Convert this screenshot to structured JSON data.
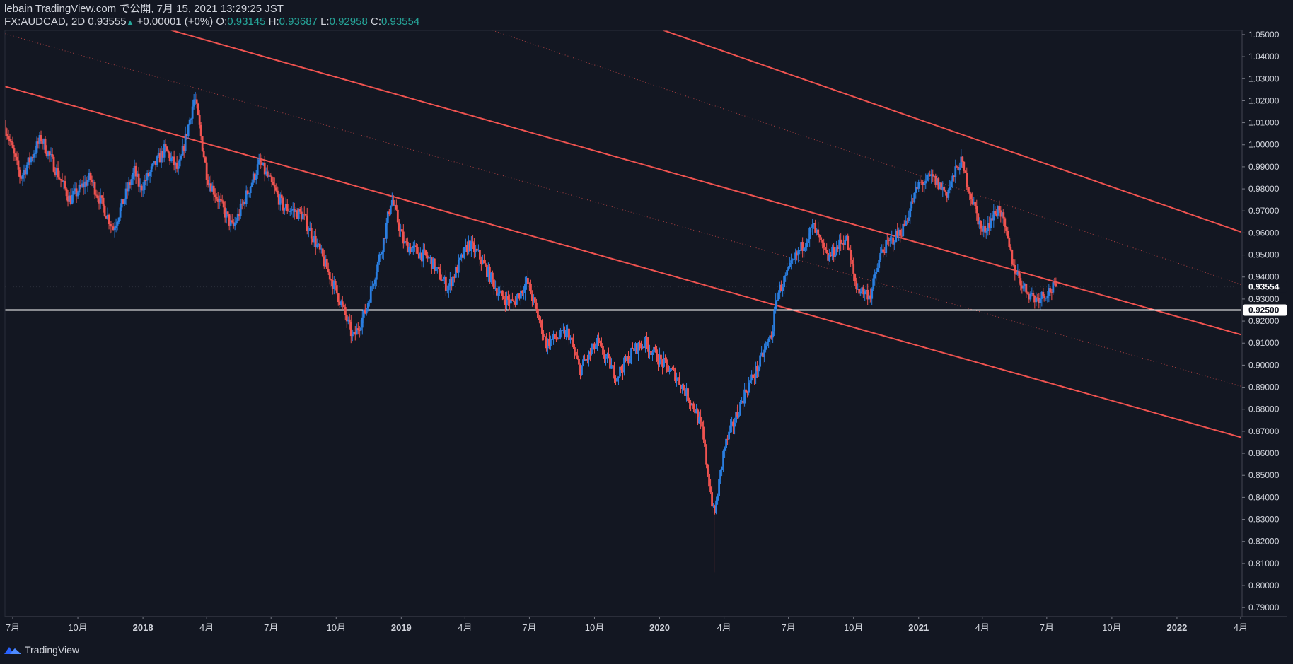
{
  "header": {
    "line1": "lebain TradingView.com で公開, 7月 15, 2021 13:29:25 JST",
    "symbol": "FX:AUDCAD, 2D",
    "last": "0.93555",
    "change": "+0.00001 (+0%)",
    "o_label": "O:",
    "o_value": "0.93145",
    "h_label": "H:",
    "h_value": "0.93687",
    "l_label": "L:",
    "l_value": "0.92958",
    "c_label": "C:",
    "c_value": "0.93554"
  },
  "footer": {
    "brand": "TradingView"
  },
  "colors": {
    "background": "#131722",
    "up": "#2a7ee0",
    "down": "#ef5350",
    "channel": "#f05350",
    "text": "#d1d4dc",
    "accent": "#26a69a"
  },
  "chart_data": {
    "type": "candlestick",
    "symbol": "FX:AUDCAD",
    "interval": "2D",
    "ylim": [
      0.7859,
      1.0519
    ],
    "xlim": [
      "2017-06-20",
      "2022-04-02"
    ],
    "y_ticks": [
      "1.05000",
      "1.04000",
      "1.03000",
      "1.02000",
      "1.01000",
      "1.00000",
      "0.99000",
      "0.98000",
      "0.97000",
      "0.96000",
      "0.95000",
      "0.94000",
      "0.93000",
      "0.92000",
      "0.91000",
      "0.90000",
      "0.89000",
      "0.88000",
      "0.87000",
      "0.86000",
      "0.85000",
      "0.84000",
      "0.83000",
      "0.82000",
      "0.81000",
      "0.80000",
      "0.79000"
    ],
    "x_ticks": [
      {
        "date": "2017-07-01",
        "label": "7月"
      },
      {
        "date": "2017-10-01",
        "label": "10月"
      },
      {
        "date": "2018-01-01",
        "label": "2018"
      },
      {
        "date": "2018-04-01",
        "label": "4月"
      },
      {
        "date": "2018-07-01",
        "label": "7月"
      },
      {
        "date": "2018-10-01",
        "label": "10月"
      },
      {
        "date": "2019-01-01",
        "label": "2019"
      },
      {
        "date": "2019-04-01",
        "label": "4月"
      },
      {
        "date": "2019-07-01",
        "label": "7月"
      },
      {
        "date": "2019-10-01",
        "label": "10月"
      },
      {
        "date": "2020-01-01",
        "label": "2020"
      },
      {
        "date": "2020-04-01",
        "label": "4月"
      },
      {
        "date": "2020-07-01",
        "label": "7月"
      },
      {
        "date": "2020-10-01",
        "label": "10月"
      },
      {
        "date": "2021-01-01",
        "label": "2021"
      },
      {
        "date": "2021-04-01",
        "label": "4月"
      },
      {
        "date": "2021-07-01",
        "label": "7月"
      },
      {
        "date": "2021-10-01",
        "label": "10月"
      },
      {
        "date": "2022-01-01",
        "label": "2022"
      },
      {
        "date": "2022-04-01",
        "label": "4月"
      }
    ],
    "price_path": [
      [
        "2017-06-21",
        1.008
      ],
      [
        "2017-07-12",
        0.985
      ],
      [
        "2017-08-10",
        1.003
      ],
      [
        "2017-09-20",
        0.975
      ],
      [
        "2017-10-18",
        0.985
      ],
      [
        "2017-11-20",
        0.962
      ],
      [
        "2017-12-20",
        0.988
      ],
      [
        "2017-12-28",
        0.98
      ],
      [
        "2018-02-01",
        0.998
      ],
      [
        "2018-02-20",
        0.988
      ],
      [
        "2018-03-15",
        1.022
      ],
      [
        "2018-04-02",
        0.985
      ],
      [
        "2018-05-08",
        0.962
      ],
      [
        "2018-06-15",
        0.992
      ],
      [
        "2018-07-18",
        0.972
      ],
      [
        "2018-08-15",
        0.968
      ],
      [
        "2018-09-10",
        0.95
      ],
      [
        "2018-10-08",
        0.928
      ],
      [
        "2018-10-25",
        0.912
      ],
      [
        "2018-11-12",
        0.925
      ],
      [
        "2018-12-08",
        0.958
      ],
      [
        "2018-12-18",
        0.976
      ],
      [
        "2019-01-05",
        0.955
      ],
      [
        "2019-02-10",
        0.948
      ],
      [
        "2019-03-08",
        0.935
      ],
      [
        "2019-04-06",
        0.955
      ],
      [
        "2019-04-20",
        0.95
      ],
      [
        "2019-05-20",
        0.932
      ],
      [
        "2019-06-08",
        0.928
      ],
      [
        "2019-06-28",
        0.938
      ],
      [
        "2019-07-25",
        0.91
      ],
      [
        "2019-08-25",
        0.915
      ],
      [
        "2019-09-10",
        0.898
      ],
      [
        "2019-10-05",
        0.91
      ],
      [
        "2019-11-01",
        0.895
      ],
      [
        "2019-11-25",
        0.907
      ],
      [
        "2019-12-12",
        0.91
      ],
      [
        "2020-01-05",
        0.901
      ],
      [
        "2020-01-25",
        0.895
      ],
      [
        "2020-02-20",
        0.88
      ],
      [
        "2020-03-01",
        0.87
      ],
      [
        "2020-03-18",
        0.831
      ],
      [
        "2020-04-01",
        0.862
      ],
      [
        "2020-05-01",
        0.888
      ],
      [
        "2020-05-20",
        0.9
      ],
      [
        "2020-06-08",
        0.915
      ],
      [
        "2020-06-15",
        0.932
      ],
      [
        "2020-07-10",
        0.948
      ],
      [
        "2020-08-05",
        0.963
      ],
      [
        "2020-08-25",
        0.948
      ],
      [
        "2020-09-20",
        0.958
      ],
      [
        "2020-10-05",
        0.935
      ],
      [
        "2020-10-25",
        0.932
      ],
      [
        "2020-11-10",
        0.952
      ],
      [
        "2020-12-10",
        0.962
      ],
      [
        "2021-01-01",
        0.982
      ],
      [
        "2021-01-20",
        0.985
      ],
      [
        "2021-02-10",
        0.978
      ],
      [
        "2021-03-01",
        0.993
      ],
      [
        "2021-03-15",
        0.978
      ],
      [
        "2021-04-01",
        0.96
      ],
      [
        "2021-04-25",
        0.972
      ],
      [
        "2021-05-15",
        0.945
      ],
      [
        "2021-05-30",
        0.935
      ],
      [
        "2021-06-15",
        0.93
      ],
      [
        "2021-06-30",
        0.933
      ],
      [
        "2021-07-14",
        0.9355
      ]
    ],
    "trendlines": [
      {
        "style": "solid",
        "points": [
          [
            "2017-06-20",
            1.0265
          ],
          [
            "2022-04-02",
            0.8672
          ]
        ]
      },
      {
        "style": "solid",
        "points": [
          [
            "2018-01-20",
            1.0539
          ],
          [
            "2022-04-02",
            0.9138
          ]
        ]
      },
      {
        "style": "solid",
        "points": [
          [
            "2019-12-20",
            1.0539
          ],
          [
            "2022-04-02",
            0.9604
          ]
        ]
      },
      {
        "style": "dotted",
        "points": [
          [
            "2017-06-20",
            1.0504
          ],
          [
            "2022-04-02",
            0.8904
          ]
        ]
      },
      {
        "style": "dotted",
        "points": [
          [
            "2019-05-10",
            1.0519
          ],
          [
            "2022-04-02",
            0.9365
          ]
        ]
      }
    ],
    "horizontal_lines": [
      {
        "price": 0.925,
        "label": "0.92500",
        "color": "#ffffff"
      }
    ],
    "last_price": {
      "price": 0.93554,
      "label": "0.93554"
    },
    "low_marker": {
      "date": "2020-03-18",
      "price": 0.806
    }
  }
}
